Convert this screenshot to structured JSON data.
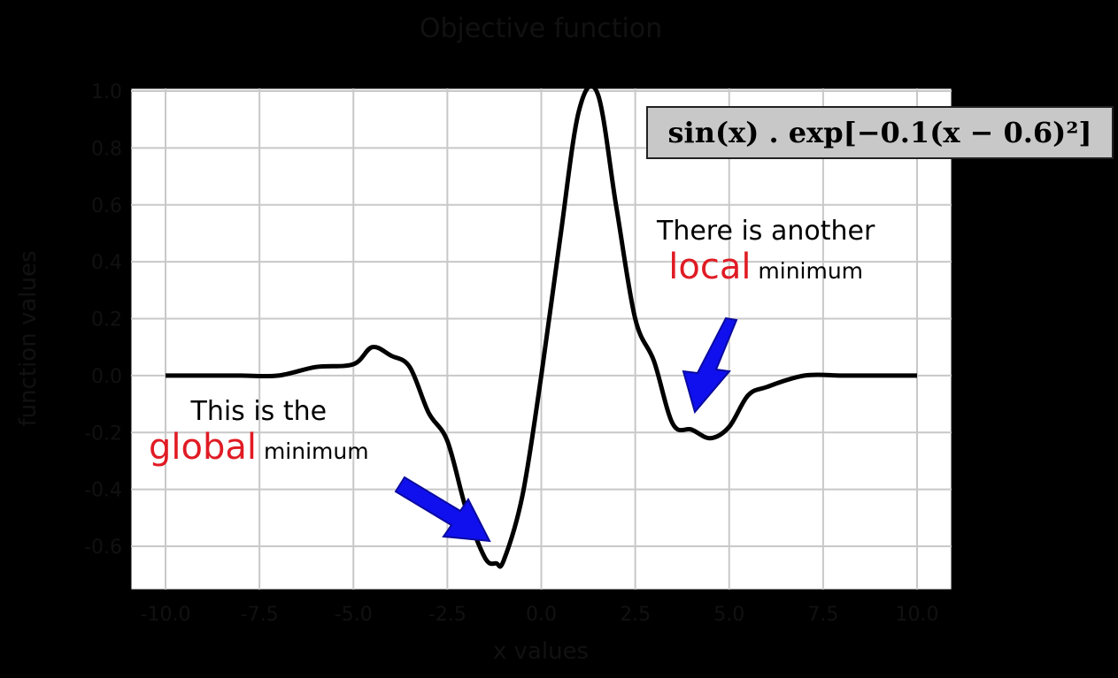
{
  "chart_data": {
    "type": "line",
    "title": "Objective function",
    "xlabel": "x values",
    "ylabel": "function values",
    "xlim": [
      -10,
      10
    ],
    "ylim": [
      -0.75,
      1.0
    ],
    "grid": true,
    "x_ticks": [
      "-10.0",
      "-7.5",
      "-5.0",
      "-2.5",
      "0.0",
      "2.5",
      "5.0",
      "7.5",
      "10.0"
    ],
    "y_ticks": [
      "-0.6",
      "-0.4",
      "-0.2",
      "0.0",
      "0.2",
      "0.4",
      "0.6",
      "0.8",
      "1.0"
    ],
    "function": "sin(x)*exp(-0.1*(x-0.6)^2)",
    "series": [
      {
        "x": [
          -10,
          -9,
          -8,
          -7,
          -6,
          -5,
          -4.5,
          -4,
          -3.5,
          -3,
          -2.5,
          -2,
          -1.5,
          -1.2,
          -1,
          -0.5,
          0,
          0.5,
          1,
          1.5,
          2,
          2.5,
          3,
          3.5,
          4,
          4.5,
          5,
          5.5,
          6,
          7,
          8,
          9,
          10
        ],
        "y": [
          0.0,
          0.0,
          0.0,
          0.0,
          0.03,
          0.04,
          0.1,
          0.07,
          0.03,
          -0.13,
          -0.23,
          -0.47,
          -0.64,
          -0.66,
          -0.65,
          -0.42,
          0.0,
          0.48,
          0.93,
          0.99,
          0.59,
          0.2,
          0.05,
          -0.17,
          -0.19,
          -0.22,
          -0.18,
          -0.07,
          -0.04,
          0.0,
          0.0,
          0.0,
          0.0
        ],
        "color": "#000000"
      }
    ]
  },
  "formula_box": {
    "text": "sin(x) . exp[−0.1(x − 0.6)²]"
  },
  "annotations": {
    "global": {
      "line1": "This is the",
      "emphasis": "global",
      "rest": " minimum"
    },
    "local": {
      "line1": "There is another",
      "emphasis": "local",
      "rest": " minimum"
    }
  },
  "colors": {
    "curve": "#000000",
    "arrow": "#1010ee",
    "emphasis": "#e01b24",
    "plot_bg": "#ffffff",
    "grid": "#c8c8c8"
  }
}
